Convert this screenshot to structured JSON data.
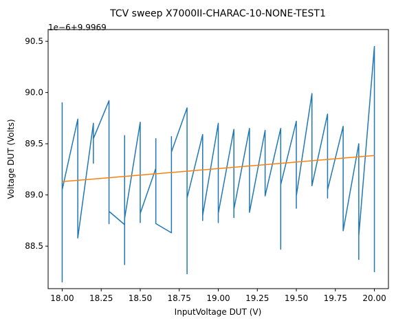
{
  "chart_data": {
    "type": "line",
    "title": "TCV sweep X7000II-CHARAC-10-NONE-TEST1",
    "xlabel": "InputVoltage DUT (V)",
    "ylabel": "Voltage DUT (Volts)",
    "offset_label": "1e−6+9.9969",
    "xlim": [
      17.91,
      20.09
    ],
    "ylim": [
      88.085,
      90.615
    ],
    "grid": false,
    "x_ticks": [
      18.0,
      18.25,
      18.5,
      18.75,
      19.0,
      19.25,
      19.5,
      19.75,
      20.0
    ],
    "x_tick_labels": [
      "18.00",
      "18.25",
      "18.50",
      "18.75",
      "19.00",
      "19.25",
      "19.50",
      "19.75",
      "20.00"
    ],
    "y_ticks": [
      88.5,
      89.0,
      89.5,
      90.0,
      90.5
    ],
    "y_tick_labels": [
      "88.5",
      "89.0",
      "89.5",
      "90.0",
      "90.5"
    ],
    "series": [
      {
        "color": "#1f77b4",
        "x": [
          18.0,
          18.0,
          18.0,
          18.0,
          18.0,
          18.0,
          18.0,
          18.0,
          18.0,
          18.0,
          18.1,
          18.1,
          18.1,
          18.1,
          18.1,
          18.1,
          18.1,
          18.2,
          18.2,
          18.2,
          18.3,
          18.3,
          18.3,
          18.3,
          18.4,
          18.4,
          18.4,
          18.4,
          18.5,
          18.5,
          18.5,
          18.5,
          18.6,
          18.6,
          18.6,
          18.6,
          18.7,
          18.7,
          18.7,
          18.7,
          18.8,
          18.8,
          18.8,
          18.8,
          18.9,
          18.9,
          18.9,
          18.9,
          19.0,
          19.0,
          19.0,
          19.0,
          19.1,
          19.1,
          19.1,
          19.1,
          19.2,
          19.2,
          19.2,
          19.2,
          19.3,
          19.3,
          19.3,
          19.3,
          19.4,
          19.4,
          19.4,
          19.4,
          19.5,
          19.5,
          19.5,
          19.5,
          19.6,
          19.6,
          19.6,
          19.6,
          19.7,
          19.7,
          19.7,
          19.7,
          19.8,
          19.8,
          19.8,
          19.8,
          19.9,
          19.9,
          19.9,
          19.9,
          20.0,
          20.0,
          20.0,
          20.0,
          20.0,
          20.0
        ],
        "y": [
          88.2,
          89.9,
          88.6,
          89.85,
          88.15,
          89.6,
          88.35,
          89.75,
          88.97,
          89.05,
          89.74,
          89.03,
          88.6,
          89.67,
          88.97,
          89.48,
          88.58,
          89.7,
          89.31,
          89.55,
          89.92,
          88.72,
          89.74,
          88.84,
          88.71,
          89.58,
          88.32,
          88.77,
          89.71,
          88.73,
          89.29,
          88.82,
          89.26,
          88.73,
          89.55,
          88.72,
          88.63,
          89.57,
          88.8,
          89.42,
          89.85,
          88.23,
          89.67,
          88.97,
          89.59,
          88.75,
          89.3,
          88.8,
          89.7,
          88.73,
          89.46,
          88.82,
          89.64,
          88.78,
          89.52,
          88.86,
          89.65,
          88.85,
          89.43,
          88.83,
          89.63,
          89.04,
          89.31,
          88.99,
          89.65,
          88.47,
          89.37,
          89.1,
          89.72,
          88.87,
          89.42,
          88.99,
          89.99,
          89.31,
          89.7,
          89.09,
          89.79,
          88.97,
          89.46,
          89.05,
          89.67,
          88.82,
          89.48,
          88.65,
          89.5,
          88.37,
          89.32,
          88.6,
          90.45,
          88.25,
          89.97,
          88.41,
          89.1,
          89.38
        ]
      },
      {
        "color": "#ff7f0e",
        "x": [
          18.0,
          20.0
        ],
        "y": [
          89.13,
          89.385
        ]
      }
    ]
  }
}
